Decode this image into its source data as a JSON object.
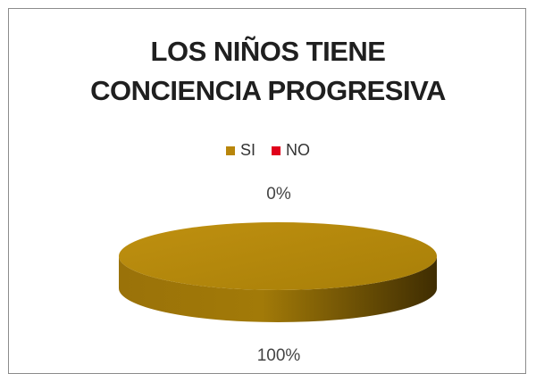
{
  "chart_data": {
    "type": "pie",
    "title_lines": [
      "LOS NIÑOS TIENE",
      "CONCIENCIA PROGRESIVA"
    ],
    "categories": [
      "SI",
      "NO"
    ],
    "values": [
      100,
      0
    ],
    "data_labels": [
      "100%",
      "0%"
    ],
    "colors": [
      "#b8860b",
      "#e0001b"
    ],
    "legend_position": "top",
    "style": "3d"
  }
}
